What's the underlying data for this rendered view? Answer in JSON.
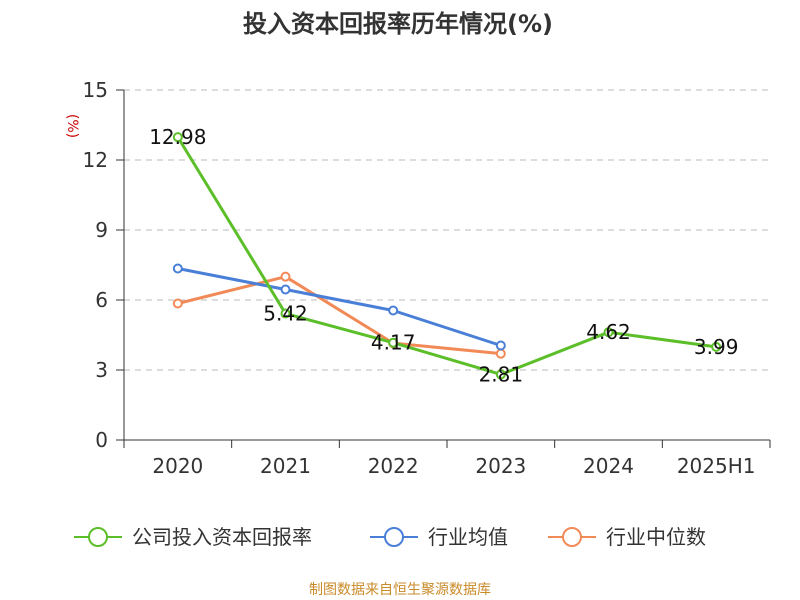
{
  "chart_data": {
    "type": "line",
    "title": "投入资本回报率历年情况(%)",
    "ylabel": "(%)",
    "xlabel": "",
    "categories": [
      "2020",
      "2021",
      "2022",
      "2023",
      "2024",
      "2025H1"
    ],
    "ylim": [
      0,
      15
    ],
    "yticks": [
      0,
      3,
      6,
      9,
      12,
      15
    ],
    "grid": true,
    "legend_position": "bottom",
    "series": [
      {
        "name": "公司投入资本回报率",
        "color": "#5cbf2a",
        "values": [
          12.98,
          5.42,
          4.17,
          2.81,
          4.62,
          3.99
        ],
        "labels": [
          "12.98",
          "5.42",
          "4.17",
          "2.81",
          "4.62",
          "3.99"
        ]
      },
      {
        "name": "行业均值",
        "color": "#4a7fd8",
        "values": [
          7.35,
          6.45,
          5.55,
          4.05,
          null,
          null
        ]
      },
      {
        "name": "行业中位数",
        "color": "#f28a58",
        "values": [
          5.85,
          7.0,
          4.15,
          3.7,
          null,
          null
        ]
      }
    ]
  },
  "source": "制图数据来自恒生聚源数据库"
}
